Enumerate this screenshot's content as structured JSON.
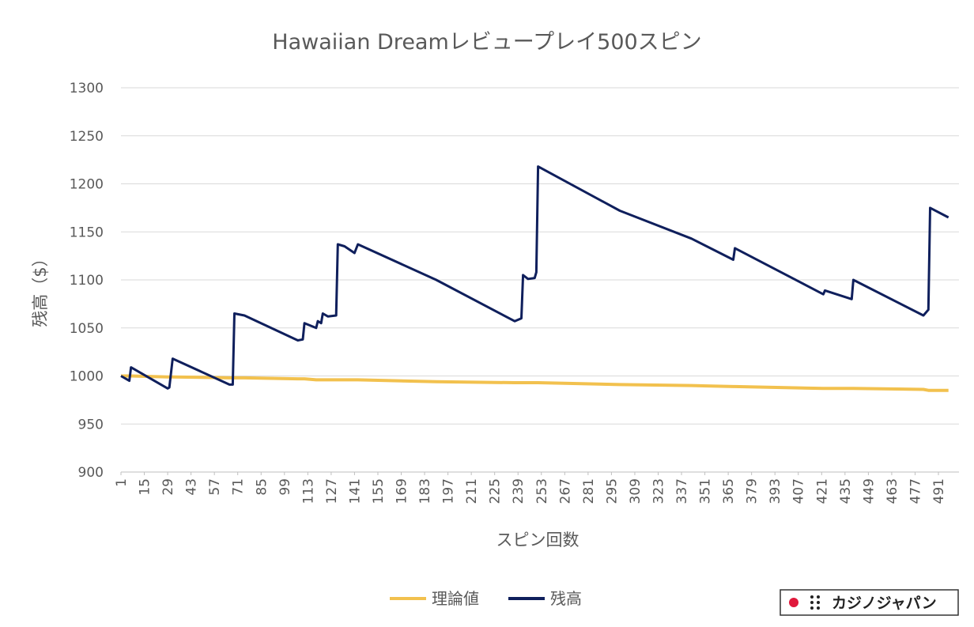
{
  "chart_data": {
    "type": "line",
    "title": "Hawaiian Dreamレビュープレイ500スピン",
    "x_label": "スピン回数",
    "y_label": "残高（$）",
    "x": [
      1,
      6,
      7,
      29,
      30,
      32,
      66,
      68,
      69,
      75,
      107,
      110,
      111,
      118,
      119,
      121,
      122,
      125,
      130,
      131,
      135,
      141,
      143,
      190,
      237,
      241,
      242,
      245,
      249,
      250,
      251,
      300,
      343,
      368,
      369,
      422,
      423,
      439,
      440,
      482,
      485,
      486,
      497
    ],
    "series": [
      {
        "name": "理論値",
        "color": "#f2c14e",
        "values": [
          1000,
          1000,
          1000,
          999,
          999,
          999,
          998,
          998,
          998,
          998,
          997,
          997,
          997,
          996,
          996,
          996,
          996,
          996,
          996,
          996,
          996,
          996,
          996,
          994,
          993,
          993,
          993,
          993,
          993,
          993,
          993,
          991,
          990,
          989,
          989,
          987,
          987,
          987,
          987,
          986,
          985,
          985,
          985
        ]
      },
      {
        "name": "残高",
        "color": "#0f1f5c",
        "values": [
          1000,
          995,
          1009,
          987,
          988,
          1018,
          991,
          991,
          1065,
          1063,
          1037,
          1038,
          1055,
          1050,
          1057,
          1055,
          1065,
          1062,
          1063,
          1137,
          1135,
          1128,
          1137,
          1100,
          1057,
          1060,
          1105,
          1101,
          1102,
          1108,
          1218,
          1172,
          1143,
          1121,
          1133,
          1085,
          1089,
          1080,
          1100,
          1063,
          1069,
          1175,
          1165
        ]
      }
    ],
    "xlim": [
      1,
      500
    ],
    "xticks": [
      1,
      15,
      29,
      43,
      57,
      71,
      85,
      99,
      113,
      127,
      141,
      155,
      169,
      183,
      197,
      211,
      225,
      239,
      253,
      267,
      281,
      295,
      309,
      323,
      337,
      351,
      365,
      379,
      393,
      407,
      421,
      435,
      449,
      463,
      477,
      491
    ],
    "ylim": [
      900,
      1300
    ],
    "yticks": [
      900,
      950,
      1000,
      1050,
      1100,
      1150,
      1200,
      1250,
      1300
    ],
    "grid": true,
    "legend": "bottom",
    "watermark": "カジノジャパン"
  }
}
